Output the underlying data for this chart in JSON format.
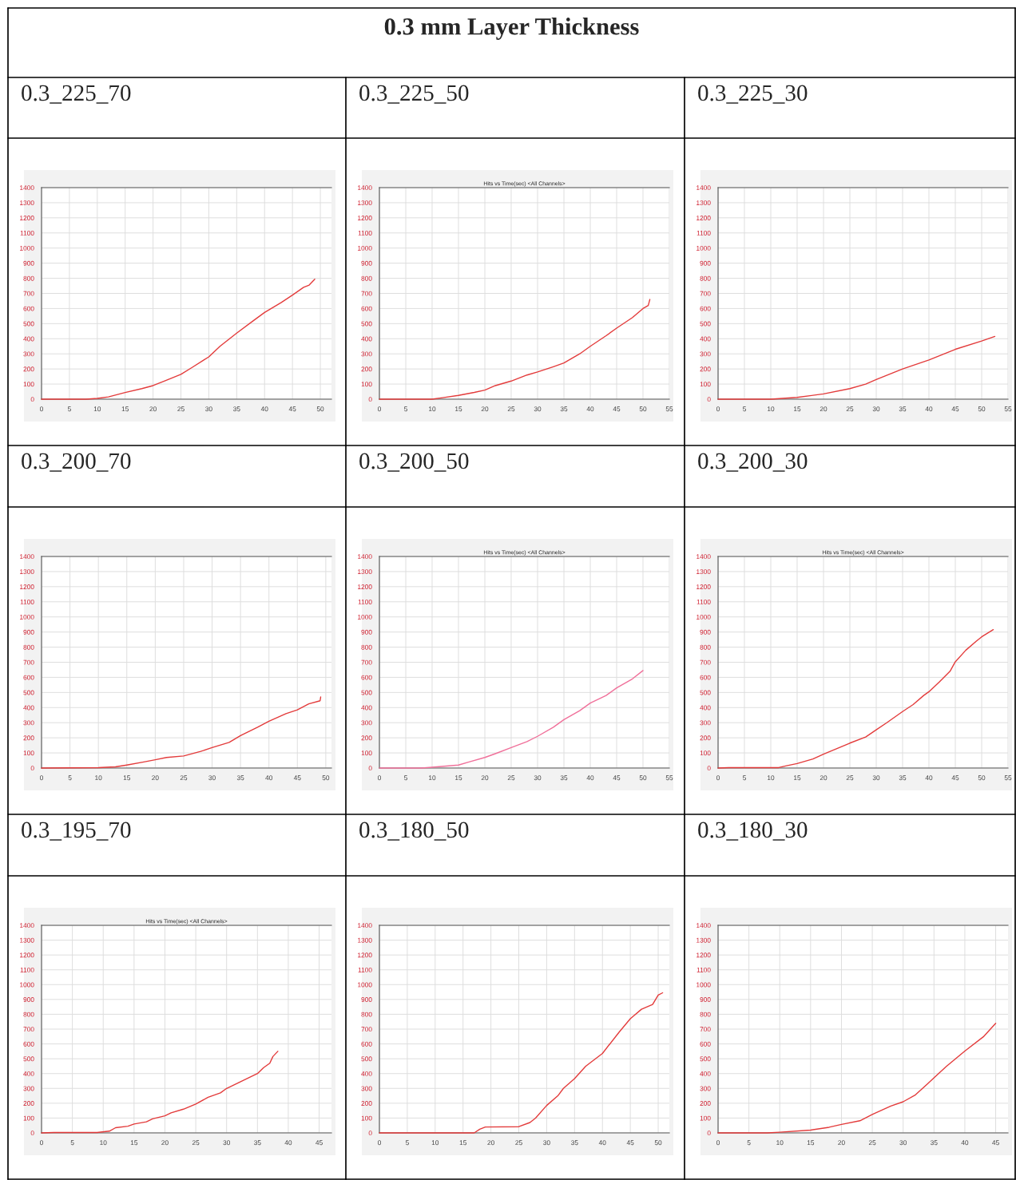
{
  "chart_data": [
    {
      "type": "line",
      "title": "0.3_225_70",
      "annotations": [
        "0.3 mm Layer Thickness"
      ],
      "xlim": [
        0,
        52
      ],
      "ylim": [
        0,
        1400
      ],
      "xticks": [
        0,
        5,
        10,
        15,
        20,
        25,
        30,
        35,
        40,
        45,
        50
      ],
      "yticks": [
        0,
        100,
        200,
        300,
        400,
        500,
        600,
        700,
        800,
        900,
        1000,
        1100,
        1200,
        1300,
        1400
      ],
      "grid": true,
      "series": [
        {
          "color": "#e33b3b",
          "x": [
            0,
            8,
            10,
            12,
            15,
            18,
            20,
            22,
            25,
            27,
            30,
            32,
            35,
            38,
            40,
            43,
            45,
            47,
            48,
            49
          ],
          "values": [
            0,
            0,
            5,
            15,
            44,
            70,
            90,
            120,
            164,
            210,
            280,
            350,
            437,
            520,
            574,
            640,
            689,
            740,
            755,
            794
          ]
        }
      ]
    },
    {
      "type": "line",
      "title": "0.3_225_50",
      "subtitle": "Hits vs Time(sec) <All Channels>",
      "xlim": [
        0,
        55
      ],
      "ylim": [
        0,
        1400
      ],
      "xticks": [
        0,
        5,
        10,
        15,
        20,
        25,
        30,
        35,
        40,
        45,
        50,
        55
      ],
      "yticks": [
        0,
        100,
        200,
        300,
        400,
        500,
        600,
        700,
        800,
        900,
        1000,
        1100,
        1200,
        1300,
        1400
      ],
      "grid": true,
      "series": [
        {
          "color": "#e33b3b",
          "x": [
            0,
            10,
            12,
            15,
            18,
            20,
            22,
            25,
            28,
            30,
            33,
            35,
            38,
            40,
            43,
            45,
            48,
            50,
            51,
            51.3
          ],
          "values": [
            0,
            0,
            10,
            25,
            45,
            60,
            90,
            120,
            160,
            180,
            215,
            240,
            300,
            350,
            420,
            470,
            540,
            600,
            620,
            660
          ]
        }
      ]
    },
    {
      "type": "line",
      "title": "0.3_225_30",
      "xlim": [
        0,
        55
      ],
      "ylim": [
        0,
        1400
      ],
      "xticks": [
        0,
        5,
        10,
        15,
        20,
        25,
        30,
        35,
        40,
        45,
        50,
        55
      ],
      "yticks": [
        0,
        100,
        200,
        300,
        400,
        500,
        600,
        700,
        800,
        900,
        1000,
        1100,
        1200,
        1300,
        1400
      ],
      "grid": true,
      "series": [
        {
          "color": "#e33b3b",
          "x": [
            0,
            10,
            15,
            20,
            25,
            28,
            30,
            35,
            40,
            45,
            50,
            52.5
          ],
          "values": [
            0,
            0,
            12,
            35,
            70,
            100,
            130,
            200,
            260,
            330,
            385,
            415
          ]
        }
      ]
    },
    {
      "type": "line",
      "title": "0.3_200_70",
      "xlim": [
        0,
        51
      ],
      "ylim": [
        0,
        1400
      ],
      "xticks": [
        0,
        5,
        10,
        15,
        20,
        25,
        30,
        35,
        40,
        45,
        50
      ],
      "yticks": [
        0,
        100,
        200,
        300,
        400,
        500,
        600,
        700,
        800,
        900,
        1000,
        1100,
        1200,
        1300,
        1400
      ],
      "grid": true,
      "series": [
        {
          "color": "#e33b3b",
          "x": [
            0,
            10,
            13,
            15,
            18,
            20,
            22,
            25,
            28,
            30,
            33,
            35,
            38,
            40,
            43,
            45,
            47,
            49,
            49.1
          ],
          "values": [
            0,
            3,
            8,
            20,
            40,
            55,
            70,
            80,
            110,
            135,
            170,
            215,
            270,
            310,
            360,
            385,
            425,
            445,
            470
          ]
        }
      ]
    },
    {
      "type": "line",
      "title": "0.3_200_50",
      "subtitle": "Hits vs Time(sec) <All Channels>",
      "xlim": [
        0,
        55
      ],
      "ylim": [
        0,
        1400
      ],
      "xticks": [
        0,
        5,
        10,
        15,
        20,
        25,
        30,
        35,
        40,
        45,
        50,
        55
      ],
      "yticks": [
        0,
        100,
        200,
        300,
        400,
        500,
        600,
        700,
        800,
        900,
        1000,
        1100,
        1200,
        1300,
        1400
      ],
      "grid": true,
      "series": [
        {
          "color": "#f0709a",
          "x": [
            0,
            8,
            10,
            15,
            17,
            20,
            22,
            25,
            28,
            30,
            33,
            35,
            38,
            40,
            43,
            45,
            48,
            50
          ],
          "values": [
            0,
            0,
            5,
            20,
            40,
            70,
            95,
            135,
            175,
            210,
            270,
            320,
            380,
            430,
            480,
            530,
            590,
            645
          ]
        }
      ]
    },
    {
      "type": "line",
      "title": "0.3_200_30",
      "subtitle": "Hits vs Time(sec) <All Channels>",
      "xlim": [
        0,
        55
      ],
      "ylim": [
        0,
        1400
      ],
      "xticks": [
        0,
        5,
        10,
        15,
        20,
        25,
        30,
        35,
        40,
        45,
        50,
        55
      ],
      "yticks": [
        0,
        100,
        200,
        300,
        400,
        500,
        600,
        700,
        800,
        900,
        1000,
        1100,
        1200,
        1300,
        1400
      ],
      "grid": true,
      "series": [
        {
          "color": "#e33b3b",
          "x": [
            0,
            2,
            11.5,
            13,
            15,
            18,
            20,
            23,
            25,
            28,
            30,
            32,
            35,
            37,
            39,
            40,
            42,
            44,
            45,
            47,
            49,
            50,
            52.2
          ],
          "values": [
            0,
            3,
            3,
            15,
            30,
            60,
            92,
            135,
            165,
            205,
            253,
            300,
            374,
            420,
            480,
            505,
            570,
            640,
            703,
            780,
            840,
            868,
            916
          ]
        }
      ]
    },
    {
      "type": "line",
      "title": "0.3_195_70",
      "subtitle": "Hits vs Time(sec) <All Channels>",
      "xlim": [
        0,
        47
      ],
      "ylim": [
        0,
        1400
      ],
      "xticks": [
        0,
        5,
        10,
        15,
        20,
        25,
        30,
        35,
        40,
        45
      ],
      "yticks": [
        0,
        100,
        200,
        300,
        400,
        500,
        600,
        700,
        800,
        900,
        1000,
        1100,
        1200,
        1300,
        1400
      ],
      "grid": true,
      "series": [
        {
          "color": "#e33b3b",
          "x": [
            0,
            2,
            9,
            11,
            12,
            14,
            15,
            17,
            18,
            20,
            21,
            23,
            25,
            27,
            28,
            29,
            30,
            32,
            34,
            35,
            36,
            37,
            37.5,
            38.3
          ],
          "values": [
            0,
            3,
            3,
            12,
            35,
            45,
            60,
            75,
            95,
            115,
            135,
            160,
            195,
            240,
            255,
            270,
            300,
            340,
            380,
            400,
            440,
            470,
            515,
            550
          ]
        }
      ]
    },
    {
      "type": "line",
      "title": "0.3_180_50",
      "xlim": [
        0,
        52
      ],
      "ylim": [
        0,
        1400
      ],
      "xticks": [
        0,
        5,
        10,
        15,
        20,
        25,
        30,
        35,
        40,
        45,
        50
      ],
      "yticks": [
        0,
        100,
        200,
        300,
        400,
        500,
        600,
        700,
        800,
        900,
        1000,
        1100,
        1200,
        1300,
        1400
      ],
      "grid": true,
      "series": [
        {
          "color": "#e33b3b",
          "x": [
            0,
            17,
            18,
            19,
            25,
            27,
            28,
            30,
            32,
            33,
            35,
            37,
            40,
            43,
            45,
            47,
            49,
            50,
            50.8
          ],
          "values": [
            0,
            0,
            25,
            40,
            42,
            70,
            100,
            185,
            250,
            300,
            366,
            450,
            536,
            680,
            770,
            834,
            866,
            930,
            945
          ]
        }
      ]
    },
    {
      "type": "line",
      "title": "0.3_180_30",
      "xlim": [
        0,
        47
      ],
      "ylim": [
        0,
        1400
      ],
      "xticks": [
        0,
        5,
        10,
        15,
        20,
        25,
        30,
        35,
        40,
        45
      ],
      "yticks": [
        0,
        100,
        200,
        300,
        400,
        500,
        600,
        700,
        800,
        900,
        1000,
        1100,
        1200,
        1300,
        1400
      ],
      "grid": true,
      "series": [
        {
          "color": "#e33b3b",
          "x": [
            0,
            8,
            10,
            15,
            18,
            20,
            23,
            25,
            28,
            30,
            32,
            34,
            35,
            37,
            40,
            43,
            45
          ],
          "values": [
            0,
            0,
            5,
            19,
            38,
            57,
            82,
            124,
            181,
            210,
            257,
            333,
            371,
            448,
            552,
            648,
            739
          ]
        }
      ]
    }
  ]
}
